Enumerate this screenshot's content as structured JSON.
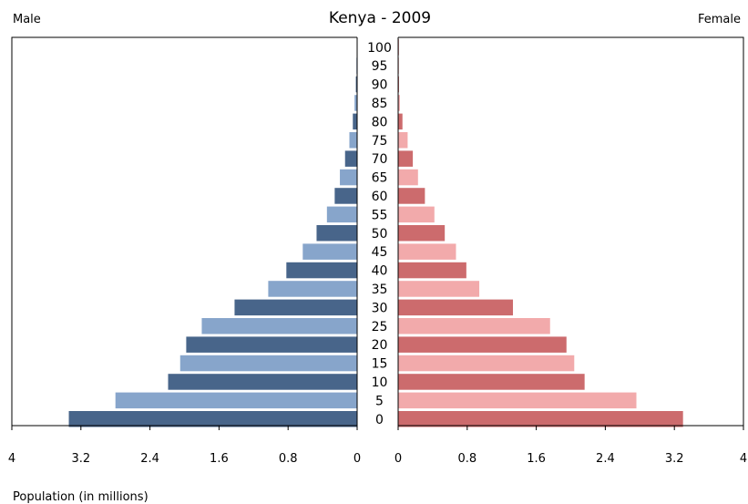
{
  "chart_data": {
    "type": "bar",
    "orientation": "horizontal",
    "layout": "population-pyramid",
    "title": "Kenya - 2009",
    "left_label": "Male",
    "right_label": "Female",
    "xlabel": "Population (in millions)",
    "xlim": [
      0,
      4
    ],
    "x_ticks_left": [
      "4",
      "3.2",
      "2.4",
      "1.6",
      "0.8",
      "0"
    ],
    "x_ticks_right": [
      "0",
      "0.8",
      "1.6",
      "2.4",
      "3.2",
      "4"
    ],
    "categories": [
      "0",
      "5",
      "10",
      "15",
      "20",
      "25",
      "30",
      "35",
      "40",
      "45",
      "50",
      "55",
      "60",
      "65",
      "70",
      "75",
      "80",
      "85",
      "90",
      "95",
      "100"
    ],
    "series": [
      {
        "name": "Male",
        "colors": [
          "#48658a",
          "#87a5cb"
        ],
        "values": [
          3.34,
          2.8,
          2.19,
          2.05,
          1.98,
          1.8,
          1.42,
          1.03,
          0.82,
          0.63,
          0.47,
          0.35,
          0.26,
          0.2,
          0.14,
          0.09,
          0.05,
          0.03,
          0.015,
          0.008,
          0.004
        ]
      },
      {
        "name": "Female",
        "colors": [
          "#cc6b6d",
          "#f2aaab"
        ],
        "values": [
          3.3,
          2.76,
          2.16,
          2.04,
          1.95,
          1.76,
          1.33,
          0.94,
          0.79,
          0.67,
          0.54,
          0.42,
          0.31,
          0.23,
          0.17,
          0.11,
          0.05,
          0.02,
          0.01,
          0.005,
          0.002
        ]
      }
    ]
  }
}
